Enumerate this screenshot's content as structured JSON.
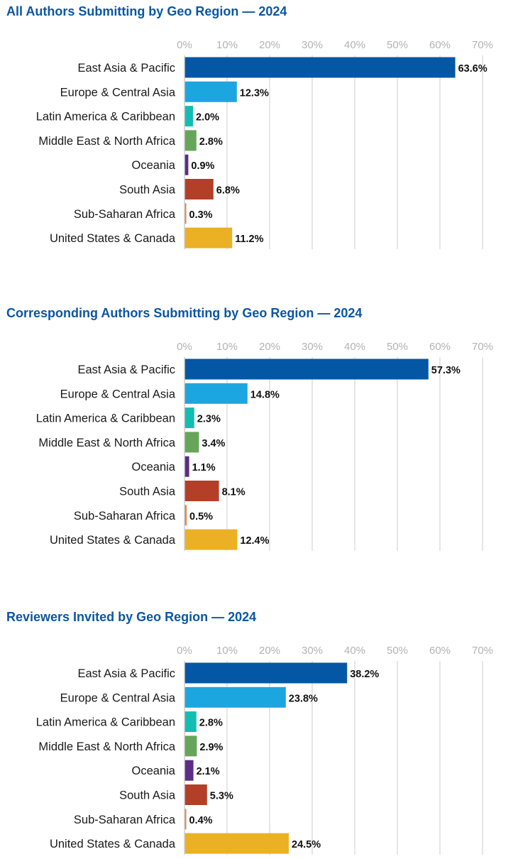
{
  "chart_data": [
    {
      "type": "bar",
      "orientation": "horizontal",
      "title": "All Authors Submitting by Geo Region — 2024",
      "categories": [
        "East Asia & Pacific",
        "Europe & Central Asia",
        "Latin America & Caribbean",
        "Middle East & North Africa",
        "Oceania",
        "South Asia",
        "Sub-Saharan Africa",
        "United States & Canada"
      ],
      "values": [
        63.6,
        12.3,
        2.0,
        2.8,
        0.9,
        6.8,
        0.3,
        11.2
      ],
      "value_labels": [
        "63.6%",
        "12.3%",
        "2.0%",
        "2.8%",
        "0.9%",
        "6.8%",
        "0.3%",
        "11.2%"
      ],
      "xlim": [
        0,
        70
      ],
      "ticks": [
        0,
        10,
        20,
        30,
        40,
        50,
        60,
        70
      ],
      "tick_labels": [
        "0%",
        "10%",
        "20%",
        "30%",
        "40%",
        "50%",
        "60%",
        "70%"
      ],
      "axis_position": "top",
      "grid": true,
      "legend": "none"
    },
    {
      "type": "bar",
      "orientation": "horizontal",
      "title": "Corresponding Authors Submitting by Geo Region — 2024",
      "categories": [
        "East Asia & Pacific",
        "Europe & Central Asia",
        "Latin America & Caribbean",
        "Middle East & North Africa",
        "Oceania",
        "South Asia",
        "Sub-Saharan Africa",
        "United States & Canada"
      ],
      "values": [
        57.3,
        14.8,
        2.3,
        3.4,
        1.1,
        8.1,
        0.5,
        12.4
      ],
      "value_labels": [
        "57.3%",
        "14.8%",
        "2.3%",
        "3.4%",
        "1.1%",
        "8.1%",
        "0.5%",
        "12.4%"
      ],
      "xlim": [
        0,
        70
      ],
      "ticks": [
        0,
        10,
        20,
        30,
        40,
        50,
        60,
        70
      ],
      "tick_labels": [
        "0%",
        "10%",
        "20%",
        "30%",
        "40%",
        "50%",
        "60%",
        "70%"
      ],
      "axis_position": "top",
      "grid": true,
      "legend": "none"
    },
    {
      "type": "bar",
      "orientation": "horizontal",
      "title": "Reviewers Invited by Geo Region — 2024",
      "categories": [
        "East Asia & Pacific",
        "Europe & Central Asia",
        "Latin America & Caribbean",
        "Middle East & North Africa",
        "Oceania",
        "South Asia",
        "Sub-Saharan Africa",
        "United States & Canada"
      ],
      "values": [
        38.2,
        23.8,
        2.8,
        2.9,
        2.1,
        5.3,
        0.4,
        24.5
      ],
      "value_labels": [
        "38.2%",
        "23.8%",
        "2.8%",
        "2.9%",
        "2.1%",
        "5.3%",
        "0.4%",
        "24.5%"
      ],
      "xlim": [
        0,
        70
      ],
      "ticks": [
        0,
        10,
        20,
        30,
        40,
        50,
        60,
        70
      ],
      "tick_labels": [
        "0%",
        "10%",
        "20%",
        "30%",
        "40%",
        "50%",
        "60%",
        "70%"
      ],
      "axis_position": "top",
      "grid": true,
      "legend": "none"
    }
  ],
  "colors": {
    "title": "#0a57a4",
    "gridline": "#e6e6e6",
    "axis_line": "#cfcfcf",
    "tick_label": "#b3b3b3",
    "category_colors": [
      "#0457a5",
      "#1ca6e0",
      "#13bdb3",
      "#67a55a",
      "#5b2d86",
      "#b33f28",
      "#e3813c",
      "#ecb024"
    ]
  }
}
